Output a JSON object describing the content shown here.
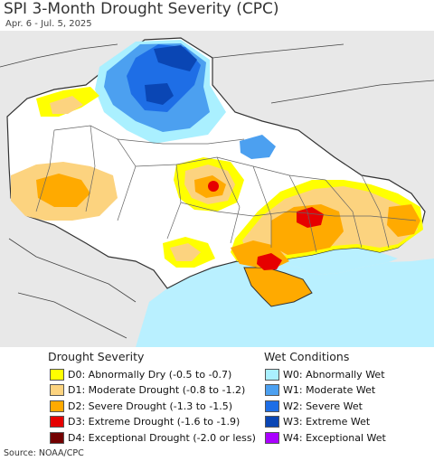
{
  "title": "SPI 3-Month Drought Severity (CPC)",
  "subtitle": "Apr. 6 - Jul. 5, 2025",
  "source": "Source: NOAA/CPC",
  "legend": {
    "drought_heading": "Drought Severity",
    "wet_heading": "Wet Conditions",
    "drought": [
      {
        "label": "D0: Abnormally Dry (-0.5 to -0.7)",
        "color": "#ffff00"
      },
      {
        "label": "D1: Moderate Drought (-0.8 to -1.2)",
        "color": "#fcd37f"
      },
      {
        "label": "D2: Severe Drought (-1.3 to -1.5)",
        "color": "#ffaa00"
      },
      {
        "label": "D3: Extreme Drought (-1.6 to -1.9)",
        "color": "#e60000"
      },
      {
        "label": "D4: Exceptional Drought (-2.0 or less)",
        "color": "#730000"
      }
    ],
    "wet": [
      {
        "label": "W0: Abnormally Wet",
        "color": "#aaf0ff"
      },
      {
        "label": "W1: Moderate Wet",
        "color": "#4ca0f0"
      },
      {
        "label": "W2: Severe Wet",
        "color": "#1e6ee6"
      },
      {
        "label": "W3: Extreme Wet",
        "color": "#0a46b4"
      },
      {
        "label": "W4: Exceptional Wet",
        "color": "#aa00ff"
      }
    ]
  },
  "map_colors": {
    "land_outside": "#e8e8e8",
    "land_inside": "#ffffff",
    "sea": "#b9f0ff",
    "border": "#333333"
  }
}
